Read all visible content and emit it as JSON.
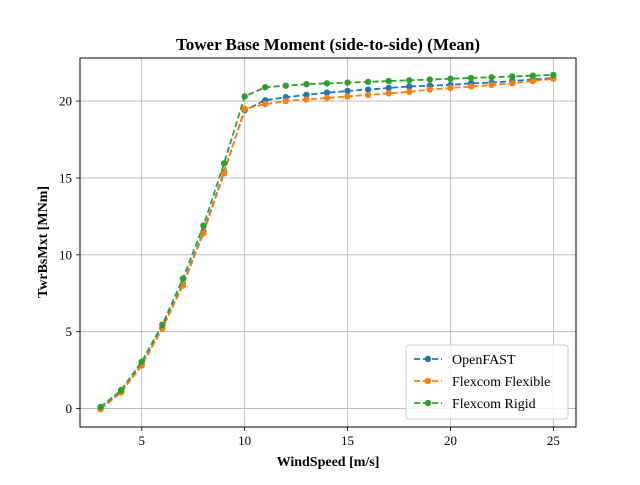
{
  "chart_data": {
    "type": "line",
    "title": "Tower Base Moment (side-to-side) (Mean)",
    "xlabel": "WindSpeed [m/s]",
    "ylabel": "TwrBsMxt [MNm]",
    "xlim": [
      2.0,
      26.1
    ],
    "ylim": [
      -1.2,
      22.8
    ],
    "xticks": [
      5,
      10,
      15,
      20,
      25
    ],
    "yticks": [
      0,
      5,
      10,
      15,
      20
    ],
    "grid": true,
    "legend_position": "bottom-right",
    "series": [
      {
        "name": "OpenFAST",
        "color": "#1f77b4",
        "x": [
          3,
          4,
          5,
          6,
          7,
          8,
          9,
          10,
          11,
          12,
          13,
          14,
          15,
          16,
          17,
          18,
          19,
          20,
          21,
          22,
          23,
          24,
          25
        ],
        "y": [
          0.0,
          1.1,
          2.85,
          5.25,
          8.1,
          11.5,
          15.4,
          19.4,
          20.05,
          20.25,
          20.4,
          20.55,
          20.65,
          20.75,
          20.85,
          20.95,
          21.0,
          21.05,
          21.15,
          21.2,
          21.3,
          21.4,
          21.5
        ]
      },
      {
        "name": "Flexcom Flexible",
        "color": "#ff7f0e",
        "x": [
          3,
          4,
          5,
          6,
          7,
          8,
          9,
          10,
          11,
          12,
          13,
          14,
          15,
          16,
          17,
          18,
          19,
          20,
          21,
          22,
          23,
          24,
          25
        ],
        "y": [
          -0.05,
          1.05,
          2.8,
          5.2,
          8.0,
          11.4,
          15.3,
          19.5,
          19.8,
          20.0,
          20.1,
          20.2,
          20.3,
          20.4,
          20.5,
          20.6,
          20.75,
          20.85,
          20.95,
          21.05,
          21.15,
          21.3,
          21.45
        ]
      },
      {
        "name": "Flexcom Rigid",
        "color": "#2ca02c",
        "x": [
          3,
          4,
          5,
          6,
          7,
          8,
          9,
          10,
          11,
          12,
          13,
          14,
          15,
          16,
          17,
          18,
          19,
          20,
          21,
          22,
          23,
          24,
          25
        ],
        "y": [
          0.1,
          1.2,
          3.05,
          5.45,
          8.45,
          11.9,
          15.95,
          20.3,
          20.9,
          21.0,
          21.1,
          21.15,
          21.2,
          21.25,
          21.3,
          21.35,
          21.4,
          21.45,
          21.5,
          21.55,
          21.6,
          21.65,
          21.7
        ]
      }
    ]
  }
}
